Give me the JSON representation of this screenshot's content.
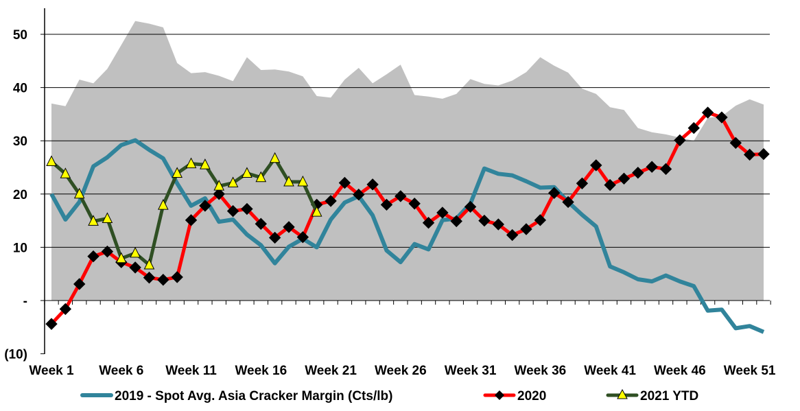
{
  "chart_data": {
    "type": "line",
    "title": "",
    "xlabel": "",
    "ylabel": "",
    "ylim": [
      -10,
      55
    ],
    "y_ticks": [
      {
        "value": 50,
        "label": "50"
      },
      {
        "value": 40,
        "label": "40"
      },
      {
        "value": 30,
        "label": "30"
      },
      {
        "value": 20,
        "label": "20"
      },
      {
        "value": 10,
        "label": "10"
      },
      {
        "value": 0,
        "label": "-"
      },
      {
        "value": -10,
        "label": "(10)"
      }
    ],
    "x_range": [
      1,
      52
    ],
    "x_tick_labels": [
      {
        "week": 1,
        "label": "Week 1"
      },
      {
        "week": 6,
        "label": "Week 6"
      },
      {
        "week": 11,
        "label": "Week 11"
      },
      {
        "week": 16,
        "label": "Week 16"
      },
      {
        "week": 21,
        "label": "Week 21"
      },
      {
        "week": 26,
        "label": "Week 26"
      },
      {
        "week": 31,
        "label": "Week 31"
      },
      {
        "week": 36,
        "label": "Week 36"
      },
      {
        "week": 41,
        "label": "Week 41"
      },
      {
        "week": 46,
        "label": "Week 46"
      },
      {
        "week": 51,
        "label": "Week 51"
      }
    ],
    "grid": "horizontal",
    "legend_position": "bottom",
    "range_band": {
      "color": "#c0c0c0",
      "upper": [
        37.0,
        36.5,
        41.5,
        40.8,
        43.5,
        48.0,
        52.5,
        52.0,
        51.3,
        44.6,
        42.7,
        42.9,
        42.2,
        41.2,
        45.7,
        43.3,
        43.4,
        43.0,
        42.1,
        38.4,
        38.1,
        41.5,
        43.7,
        40.8,
        42.5,
        44.3,
        38.6,
        38.3,
        37.9,
        38.8,
        41.6,
        40.7,
        40.4,
        41.3,
        42.9,
        45.7,
        44.1,
        42.8,
        39.8,
        38.8,
        36.3,
        35.8,
        32.4,
        31.6,
        31.2,
        30.6,
        30.0,
        34.3,
        34.6,
        36.6,
        37.8,
        36.8
      ],
      "lower": [
        0.0,
        0.0,
        0.0,
        0.0,
        0.0,
        0.0,
        0.0,
        0.0,
        0.0,
        0.0,
        0.0,
        0.0,
        0.0,
        0.0,
        0.0,
        0.0,
        0.0,
        0.0,
        0.0,
        0.0,
        0.0,
        0.0,
        0.0,
        0.0,
        0.0,
        0.0,
        0.0,
        0.0,
        0.0,
        0.0,
        0.0,
        0.0,
        0.0,
        0.0,
        0.0,
        0.0,
        0.0,
        0.0,
        0.0,
        0.0,
        0.0,
        0.0,
        0.0,
        0.0,
        0.0,
        0.0,
        0.0,
        0.0,
        0.0,
        0.0,
        0.0,
        0.0
      ]
    },
    "series": [
      {
        "name": "2019 - Spot Avg. Asia Cracker Margin (Cts/lb)",
        "color": "#31849b",
        "marker": "none",
        "values": [
          20.0,
          15.2,
          18.5,
          25.2,
          26.9,
          29.2,
          30.1,
          28.3,
          26.7,
          22.0,
          17.8,
          19.2,
          14.8,
          15.2,
          12.4,
          10.4,
          7.0,
          10.1,
          11.6,
          10.0,
          15.2,
          18.4,
          19.6,
          16.0,
          9.4,
          7.2,
          10.6,
          9.6,
          15.1,
          15.4,
          18.2,
          24.8,
          23.8,
          23.5,
          22.4,
          21.2,
          21.3,
          18.5,
          16.1,
          13.9,
          6.4,
          5.3,
          4.0,
          3.6,
          4.7,
          3.6,
          2.7,
          -1.9,
          -1.7,
          -5.2,
          -4.8,
          -5.9
        ]
      },
      {
        "name": "2020",
        "color": "#ff0000",
        "marker": "diamond",
        "values": [
          -4.4,
          -1.6,
          3.1,
          8.3,
          9.2,
          7.2,
          6.2,
          4.3,
          3.9,
          4.4,
          15.1,
          17.8,
          20.0,
          16.8,
          17.2,
          14.4,
          11.8,
          13.8,
          11.9,
          18.0,
          18.7,
          22.1,
          19.9,
          21.8,
          18.0,
          19.6,
          18.2,
          14.6,
          16.5,
          14.9,
          17.6,
          15.0,
          14.3,
          12.3,
          13.4,
          15.1,
          20.2,
          18.5,
          22.0,
          25.4,
          21.7,
          22.9,
          24.0,
          25.1,
          24.7,
          30.1,
          32.4,
          35.3,
          34.4,
          29.6,
          27.4,
          27.5
        ]
      },
      {
        "name": "2021 YTD",
        "color": "#2f4f23",
        "marker": "triangle",
        "marker_fill": "#ffff00",
        "values": [
          26.1,
          23.8,
          20.0,
          14.9,
          15.4,
          7.9,
          8.9,
          6.7,
          17.9,
          23.9,
          25.7,
          25.5,
          21.5,
          22.1,
          23.9,
          23.1,
          26.7,
          22.3,
          22.3,
          16.6
        ]
      }
    ]
  }
}
